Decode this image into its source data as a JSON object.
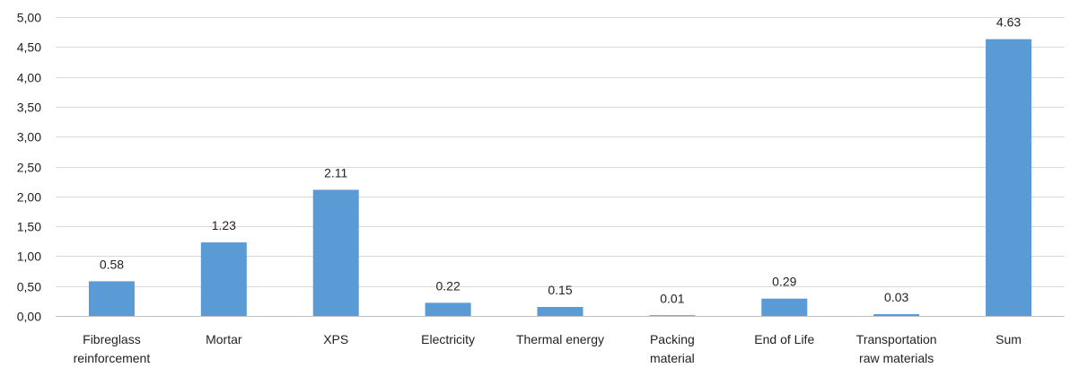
{
  "chart_data": {
    "type": "bar",
    "categories": [
      [
        "Fibreglass",
        "reinforcement"
      ],
      [
        "Mortar"
      ],
      [
        "XPS"
      ],
      [
        "Electricity"
      ],
      [
        "Thermal energy"
      ],
      [
        "Packing",
        "material"
      ],
      [
        "End of Life"
      ],
      [
        "Transportation",
        "raw materials"
      ],
      [
        "Sum"
      ]
    ],
    "values": [
      0.58,
      1.23,
      2.11,
      0.22,
      0.15,
      0.01,
      0.29,
      0.03,
      4.63
    ],
    "data_labels": [
      "0.58",
      "1.23",
      "2.11",
      "0.22",
      "0.15",
      "0.01",
      "0.29",
      "0.03",
      "4.63"
    ],
    "y_ticks": [
      "0,00",
      "0,50",
      "1,00",
      "1,50",
      "2,00",
      "2,50",
      "3,00",
      "3,50",
      "4,00",
      "4,50",
      "5,00"
    ],
    "ylim": [
      0,
      5
    ],
    "title": "",
    "xlabel": "",
    "ylabel": "",
    "grid": true,
    "legend": "none",
    "colors": {
      "bar": "#5b9bd5",
      "grid": "#d9d9d9",
      "axis": "#bfbfbf"
    }
  }
}
